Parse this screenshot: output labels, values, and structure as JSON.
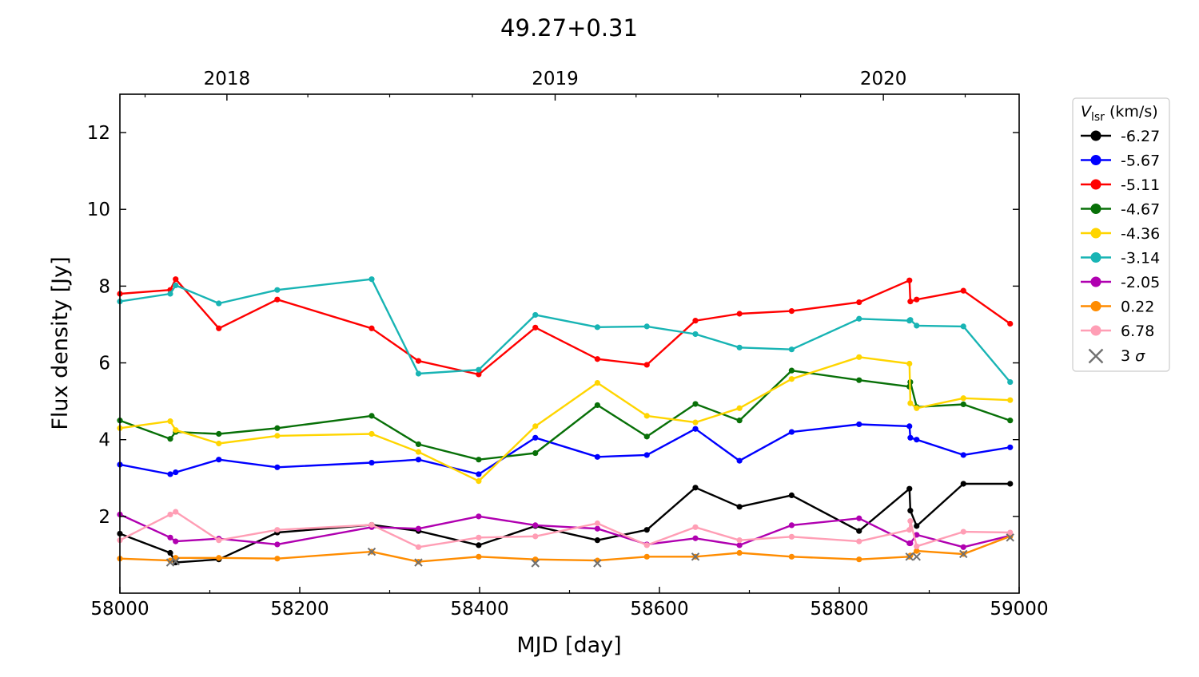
{
  "chart_data": {
    "type": "line",
    "title": "49.27+0.31",
    "xlabel": "MJD [day]",
    "ylabel": "Flux density [Jy]",
    "xlim": [
      58000,
      59000
    ],
    "ylim": [
      0,
      13
    ],
    "xticks": [
      58000,
      58200,
      58400,
      58600,
      58800,
      59000
    ],
    "yticks": [
      2,
      4,
      6,
      8,
      10,
      12
    ],
    "top_axis": {
      "tick_labels": [
        {
          "label": "2018",
          "mjd": 58119
        },
        {
          "label": "2019",
          "mjd": 58484
        },
        {
          "label": "2020",
          "mjd": 58849
        }
      ],
      "minor_mjd": [
        58028,
        58209,
        58300,
        58392,
        58574,
        58665,
        58757,
        58940
      ]
    },
    "legend": {
      "title": "V_lsr (km/s)",
      "title_main": "V",
      "title_sub": "lsr",
      "title_rest": " (km/s)",
      "position": "outside-right",
      "sigma_label": "3 σ",
      "sigma_label_main": "3",
      "sigma_label_italic": "σ"
    },
    "grid": false,
    "series": [
      {
        "name": "-6.27",
        "color": "#000000",
        "points": [
          [
            58000,
            1.55
          ],
          [
            58056,
            1.05
          ],
          [
            58062,
            0.8
          ],
          [
            58110,
            0.88
          ],
          [
            58175,
            1.58
          ],
          [
            58280,
            1.78
          ],
          [
            58332,
            1.62
          ],
          [
            58399,
            1.25
          ],
          [
            58462,
            1.75
          ],
          [
            58531,
            1.38
          ],
          [
            58586,
            1.65
          ],
          [
            58640,
            2.75
          ],
          [
            58689,
            2.25
          ],
          [
            58747,
            2.55
          ],
          [
            58822,
            1.62
          ],
          [
            58878,
            2.72
          ],
          [
            58879,
            2.15
          ],
          [
            58886,
            1.75
          ],
          [
            58938,
            2.85
          ],
          [
            58990,
            2.85
          ]
        ]
      },
      {
        "name": "-5.67",
        "color": "#0000ff",
        "points": [
          [
            58000,
            3.35
          ],
          [
            58056,
            3.1
          ],
          [
            58062,
            3.15
          ],
          [
            58110,
            3.48
          ],
          [
            58175,
            3.28
          ],
          [
            58280,
            3.4
          ],
          [
            58332,
            3.48
          ],
          [
            58399,
            3.1
          ],
          [
            58462,
            4.05
          ],
          [
            58531,
            3.55
          ],
          [
            58586,
            3.6
          ],
          [
            58640,
            4.28
          ],
          [
            58689,
            3.45
          ],
          [
            58747,
            4.2
          ],
          [
            58822,
            4.4
          ],
          [
            58878,
            4.35
          ],
          [
            58879,
            4.05
          ],
          [
            58886,
            4.0
          ],
          [
            58938,
            3.6
          ],
          [
            58990,
            3.8
          ]
        ]
      },
      {
        "name": "-5.11",
        "color": "#ff0000",
        "points": [
          [
            58000,
            7.8
          ],
          [
            58056,
            7.9
          ],
          [
            58062,
            8.18
          ],
          [
            58110,
            6.9
          ],
          [
            58175,
            7.65
          ],
          [
            58280,
            6.9
          ],
          [
            58332,
            6.05
          ],
          [
            58399,
            5.7
          ],
          [
            58462,
            6.92
          ],
          [
            58531,
            6.1
          ],
          [
            58586,
            5.95
          ],
          [
            58640,
            7.1
          ],
          [
            58689,
            7.28
          ],
          [
            58747,
            7.35
          ],
          [
            58822,
            7.58
          ],
          [
            58878,
            8.15
          ],
          [
            58879,
            7.6
          ],
          [
            58886,
            7.65
          ],
          [
            58938,
            7.88
          ],
          [
            58990,
            7.02
          ]
        ]
      },
      {
        "name": "-4.67",
        "color": "#087008",
        "points": [
          [
            58000,
            4.5
          ],
          [
            58056,
            4.02
          ],
          [
            58062,
            4.2
          ],
          [
            58110,
            4.15
          ],
          [
            58175,
            4.3
          ],
          [
            58280,
            4.62
          ],
          [
            58332,
            3.88
          ],
          [
            58399,
            3.48
          ],
          [
            58462,
            3.65
          ],
          [
            58531,
            4.9
          ],
          [
            58586,
            4.08
          ],
          [
            58640,
            4.93
          ],
          [
            58689,
            4.5
          ],
          [
            58747,
            5.8
          ],
          [
            58822,
            5.55
          ],
          [
            58878,
            5.38
          ],
          [
            58879,
            5.5
          ],
          [
            58886,
            4.85
          ],
          [
            58938,
            4.92
          ],
          [
            58990,
            4.5
          ]
        ]
      },
      {
        "name": "-4.36",
        "color": "#ffd500",
        "points": [
          [
            58000,
            4.3
          ],
          [
            58056,
            4.48
          ],
          [
            58062,
            4.25
          ],
          [
            58110,
            3.9
          ],
          [
            58175,
            4.1
          ],
          [
            58280,
            4.15
          ],
          [
            58332,
            3.68
          ],
          [
            58399,
            2.92
          ],
          [
            58462,
            4.35
          ],
          [
            58531,
            5.48
          ],
          [
            58586,
            4.62
          ],
          [
            58640,
            4.45
          ],
          [
            58689,
            4.82
          ],
          [
            58747,
            5.58
          ],
          [
            58822,
            6.15
          ],
          [
            58878,
            5.98
          ],
          [
            58879,
            4.95
          ],
          [
            58886,
            4.82
          ],
          [
            58938,
            5.08
          ],
          [
            58990,
            5.03
          ]
        ]
      },
      {
        "name": "-3.14",
        "color": "#18b4b4",
        "points": [
          [
            58000,
            7.6
          ],
          [
            58056,
            7.8
          ],
          [
            58062,
            8.02
          ],
          [
            58110,
            7.55
          ],
          [
            58175,
            7.9
          ],
          [
            58280,
            8.18
          ],
          [
            58332,
            5.72
          ],
          [
            58399,
            5.82
          ],
          [
            58462,
            7.25
          ],
          [
            58531,
            6.93
          ],
          [
            58586,
            6.95
          ],
          [
            58640,
            6.75
          ],
          [
            58689,
            6.4
          ],
          [
            58747,
            6.35
          ],
          [
            58822,
            7.15
          ],
          [
            58878,
            7.1
          ],
          [
            58879,
            7.12
          ],
          [
            58886,
            6.97
          ],
          [
            58938,
            6.95
          ],
          [
            58990,
            5.5
          ]
        ]
      },
      {
        "name": "-2.05",
        "color": "#b000b0",
        "points": [
          [
            58000,
            2.05
          ],
          [
            58056,
            1.45
          ],
          [
            58062,
            1.35
          ],
          [
            58110,
            1.42
          ],
          [
            58175,
            1.27
          ],
          [
            58280,
            1.72
          ],
          [
            58332,
            1.68
          ],
          [
            58399,
            2.0
          ],
          [
            58462,
            1.77
          ],
          [
            58531,
            1.68
          ],
          [
            58586,
            1.27
          ],
          [
            58640,
            1.43
          ],
          [
            58689,
            1.25
          ],
          [
            58747,
            1.77
          ],
          [
            58822,
            1.95
          ],
          [
            58878,
            1.3
          ],
          [
            58879,
            1.3
          ],
          [
            58886,
            1.52
          ],
          [
            58938,
            1.2
          ],
          [
            58990,
            1.5
          ]
        ]
      },
      {
        "name": "0.22",
        "color": "#ff8c00",
        "points": [
          [
            58000,
            0.9
          ],
          [
            58056,
            0.85
          ],
          [
            58062,
            0.92
          ],
          [
            58110,
            0.92
          ],
          [
            58175,
            0.9
          ],
          [
            58280,
            1.08
          ],
          [
            58332,
            0.82
          ],
          [
            58399,
            0.95
          ],
          [
            58462,
            0.88
          ],
          [
            58531,
            0.85
          ],
          [
            58586,
            0.95
          ],
          [
            58640,
            0.95
          ],
          [
            58689,
            1.05
          ],
          [
            58747,
            0.95
          ],
          [
            58822,
            0.88
          ],
          [
            58878,
            0.95
          ],
          [
            58879,
            0.98
          ],
          [
            58886,
            1.1
          ],
          [
            58938,
            1.02
          ],
          [
            58990,
            1.48
          ]
        ]
      },
      {
        "name": "6.78",
        "color": "#ff9eb5",
        "points": [
          [
            58000,
            1.38
          ],
          [
            58056,
            2.05
          ],
          [
            58062,
            2.12
          ],
          [
            58110,
            1.38
          ],
          [
            58175,
            1.65
          ],
          [
            58280,
            1.78
          ],
          [
            58332,
            1.2
          ],
          [
            58399,
            1.45
          ],
          [
            58462,
            1.48
          ],
          [
            58531,
            1.82
          ],
          [
            58586,
            1.25
          ],
          [
            58640,
            1.72
          ],
          [
            58689,
            1.38
          ],
          [
            58747,
            1.47
          ],
          [
            58822,
            1.35
          ],
          [
            58878,
            1.65
          ],
          [
            58879,
            1.88
          ],
          [
            58886,
            1.22
          ],
          [
            58938,
            1.6
          ],
          [
            58990,
            1.58
          ]
        ]
      }
    ],
    "sigma_markers": [
      [
        58056,
        0.8
      ],
      [
        58062,
        0.83
      ],
      [
        58280,
        1.08
      ],
      [
        58332,
        0.8
      ],
      [
        58462,
        0.78
      ],
      [
        58531,
        0.78
      ],
      [
        58640,
        0.95
      ],
      [
        58878,
        0.95
      ],
      [
        58886,
        0.95
      ],
      [
        58938,
        1.02
      ],
      [
        58990,
        1.45
      ]
    ]
  }
}
